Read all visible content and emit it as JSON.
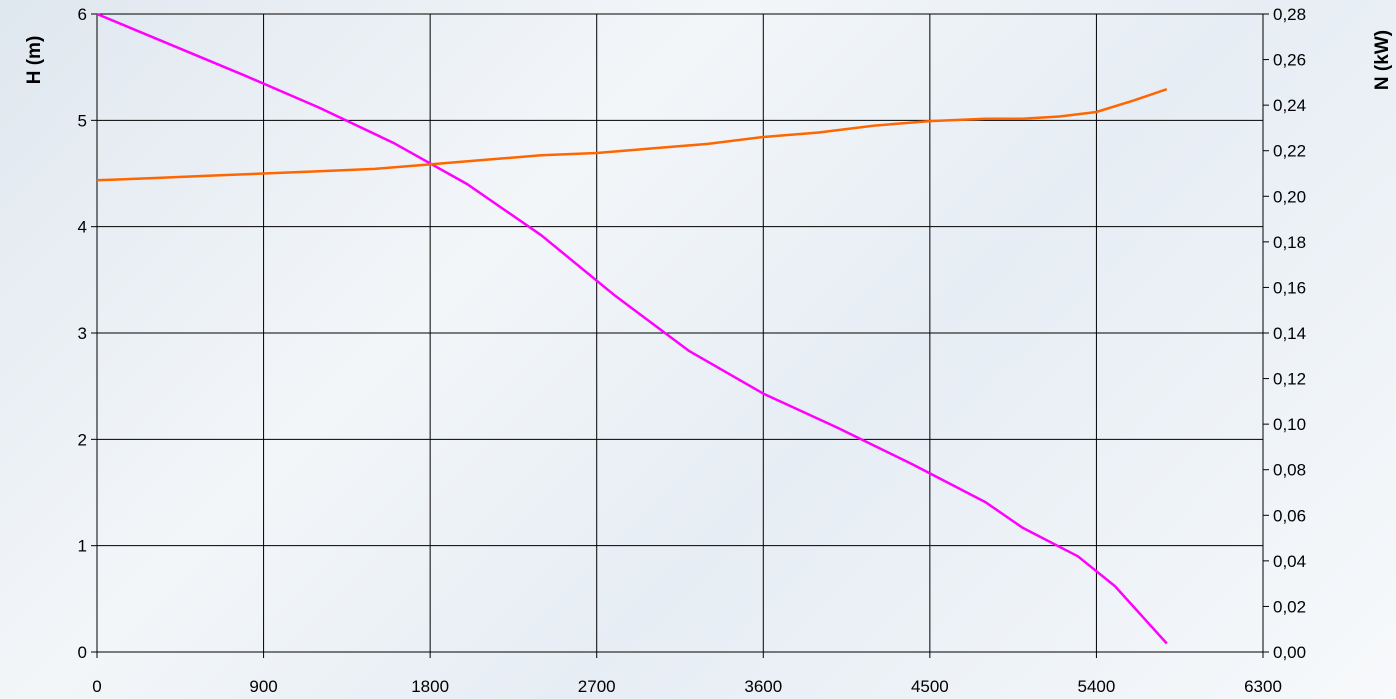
{
  "chart_data": {
    "type": "line",
    "x_ticks": [
      "0",
      "900",
      "1800",
      "2700",
      "3600",
      "4500",
      "5400",
      "6300"
    ],
    "xlim": [
      0,
      6300
    ],
    "y_left": {
      "label": "H (m)",
      "ticks": [
        "0",
        "1",
        "2",
        "3",
        "4",
        "5",
        "6"
      ],
      "lim": [
        0,
        6
      ]
    },
    "y_right": {
      "label": "N (kW)",
      "ticks": [
        "0,00",
        "0,02",
        "0,04",
        "0,06",
        "0,08",
        "0,10",
        "0,12",
        "0,14",
        "0,16",
        "0,18",
        "0,20",
        "0,22",
        "0,24",
        "0,26",
        "0,28"
      ],
      "lim": [
        0,
        0.28
      ]
    },
    "grid": true,
    "series": [
      {
        "axis": "left",
        "color": "#ff00ff",
        "x": [
          0,
          400,
          800,
          1200,
          1600,
          2000,
          2400,
          2800,
          3200,
          3600,
          4000,
          4400,
          4800,
          5000,
          5300,
          5500,
          5780
        ],
        "y": [
          6.0,
          5.71,
          5.42,
          5.12,
          4.79,
          4.4,
          3.92,
          3.35,
          2.83,
          2.43,
          2.11,
          1.77,
          1.41,
          1.17,
          0.9,
          0.62,
          0.08
        ]
      },
      {
        "axis": "right",
        "color": "#ff6600",
        "x": [
          0,
          300,
          600,
          900,
          1200,
          1500,
          1800,
          2100,
          2400,
          2700,
          3000,
          3300,
          3600,
          3900,
          4200,
          4500,
          4800,
          5000,
          5200,
          5400,
          5600,
          5780
        ],
        "y": [
          0.207,
          0.208,
          0.209,
          0.21,
          0.211,
          0.212,
          0.214,
          0.216,
          0.218,
          0.219,
          0.221,
          0.223,
          0.226,
          0.228,
          0.231,
          0.233,
          0.234,
          0.234,
          0.235,
          0.237,
          0.242,
          0.247
        ]
      }
    ]
  }
}
